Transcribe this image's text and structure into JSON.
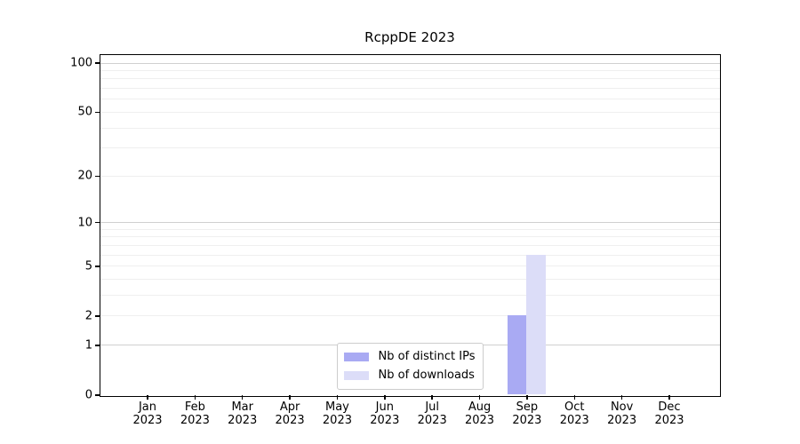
{
  "chart_data": {
    "type": "bar",
    "title": "RcppDE 2023",
    "yscale": "log1p",
    "ylim": [
      0,
      112
    ],
    "yticks": [
      100,
      50,
      20,
      10,
      5,
      2,
      1,
      0
    ],
    "grid": {
      "major": [
        1,
        10,
        100
      ],
      "minor": [
        2,
        3,
        4,
        5,
        6,
        7,
        8,
        9,
        20,
        30,
        40,
        50,
        60,
        70,
        80,
        90
      ],
      "major_color": "#d0d0d0",
      "minor_color": "#efefef"
    },
    "categories": [
      "Jan 2023",
      "Feb 2023",
      "Mar 2023",
      "Apr 2023",
      "May 2023",
      "Jun 2023",
      "Jul 2023",
      "Aug 2023",
      "Sep 2023",
      "Oct 2023",
      "Nov 2023",
      "Dec 2023"
    ],
    "series": [
      {
        "name": "Nb of distinct IPs",
        "color": "#a9aaf3",
        "values": [
          0,
          0,
          0,
          0,
          0,
          0,
          0,
          0,
          2,
          0,
          0,
          0
        ]
      },
      {
        "name": "Nb of downloads",
        "color": "#dcddf8",
        "values": [
          0,
          0,
          0,
          0,
          0,
          0,
          0,
          0,
          6,
          0,
          0,
          0
        ]
      }
    ],
    "legend_position": "lower center",
    "grid_on": true
  },
  "axes": {
    "spine_color": "#000000",
    "text_color": "#000000",
    "background": "#ffffff"
  }
}
